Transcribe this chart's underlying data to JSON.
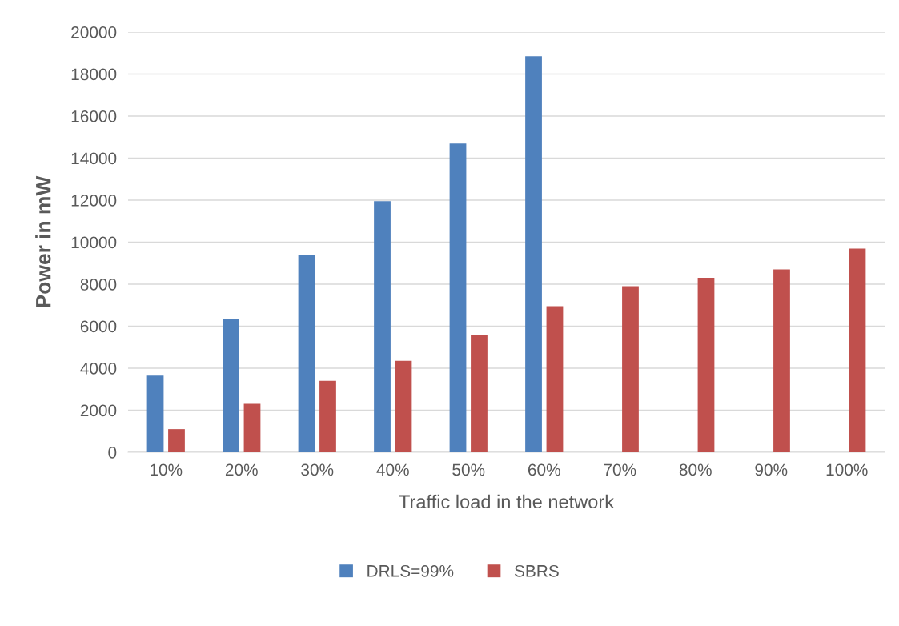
{
  "chart_data": {
    "type": "bar",
    "xlabel": "Traffic load in the network",
    "ylabel": "Power in mW",
    "categories": [
      "10%",
      "20%",
      "30%",
      "40%",
      "50%",
      "60%",
      "70%",
      "80%",
      "90%",
      "100%"
    ],
    "series": [
      {
        "name": "DRLS=99%",
        "color": "#4f81bd",
        "values": [
          3650,
          6350,
          9400,
          11950,
          14700,
          18850,
          null,
          null,
          null,
          null
        ]
      },
      {
        "name": "SBRS",
        "color": "#c0504d",
        "values": [
          1100,
          2300,
          3400,
          4350,
          5600,
          6950,
          7900,
          8300,
          8700,
          9700
        ]
      }
    ],
    "ylim": [
      0,
      20000
    ],
    "yticks": [
      0,
      2000,
      4000,
      6000,
      8000,
      10000,
      12000,
      14000,
      16000,
      18000,
      20000
    ],
    "grid": "y",
    "legend": "bottom"
  }
}
